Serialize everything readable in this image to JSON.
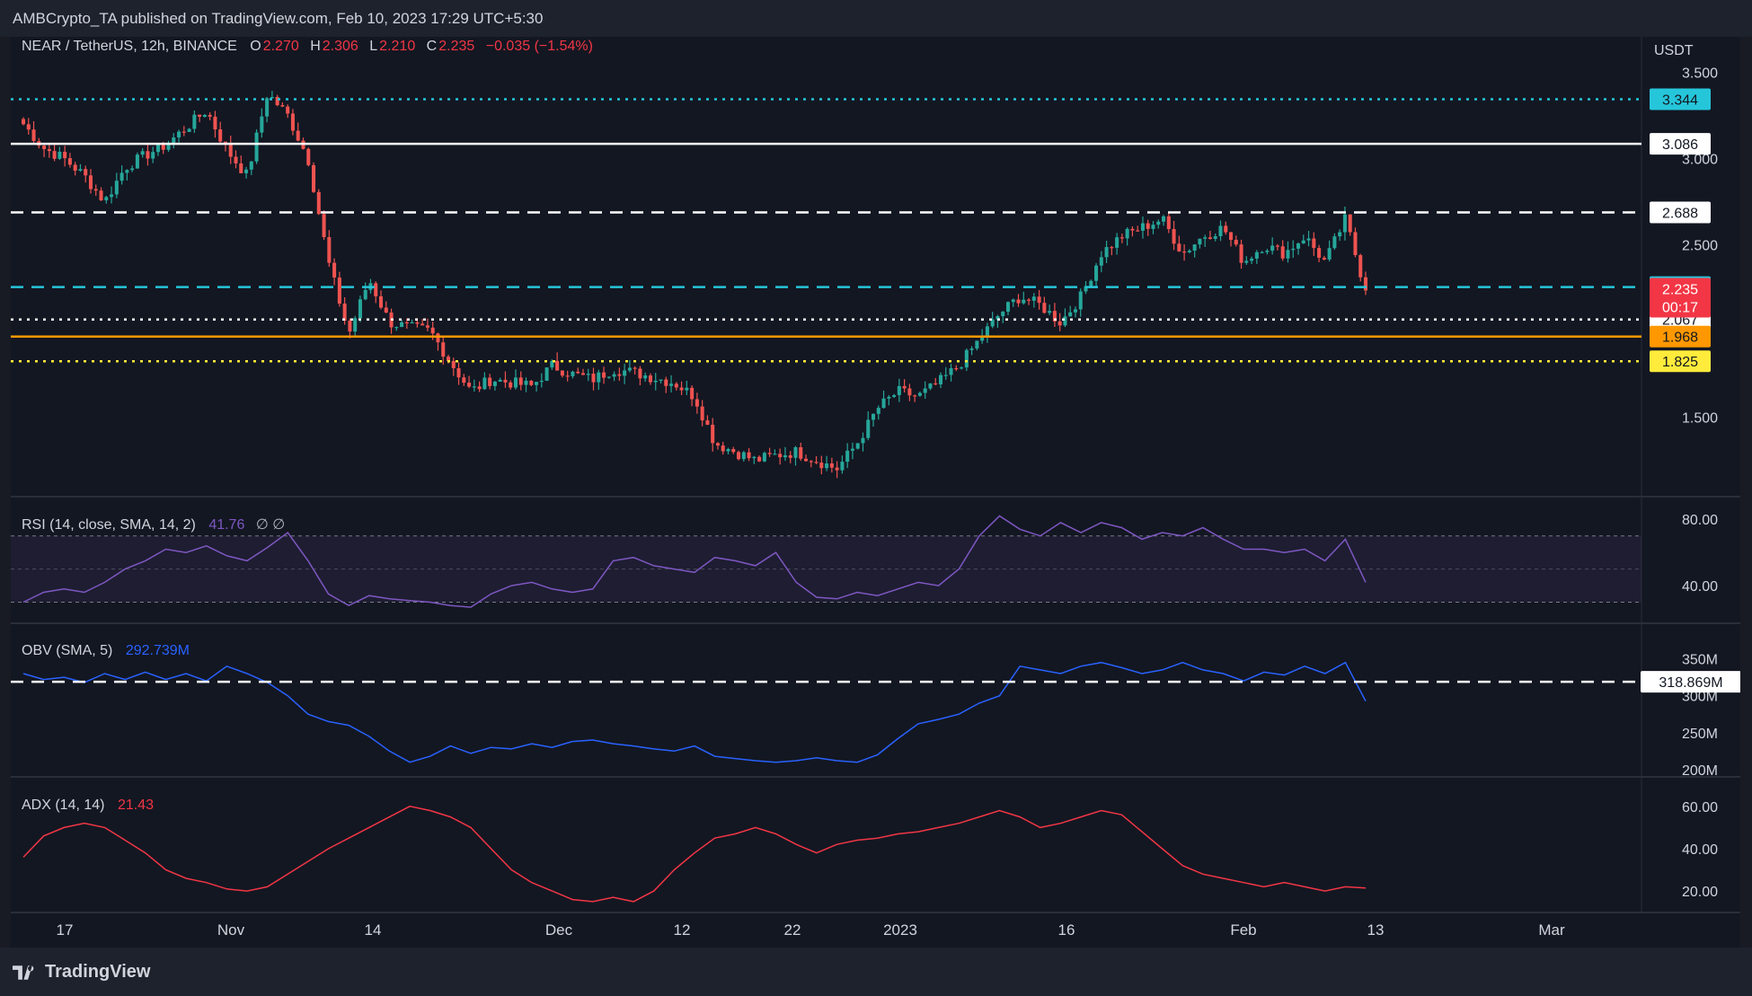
{
  "publisher_line": "AMBCrypto_TA published on TradingView.com, Feb 10, 2023 17:29 UTC+5:30",
  "brand": "TradingView",
  "main_legend": {
    "symbol": "NEAR / TetherUS, 12h, BINANCE",
    "o_label": "O",
    "o": "2.270",
    "h_label": "H",
    "h": "2.306",
    "l_label": "L",
    "l": "2.210",
    "c_label": "C",
    "c": "2.235",
    "change": "−0.035 (−1.54%)"
  },
  "currency": "USDT",
  "colors": {
    "up": "#26a69a",
    "down": "#ef5350",
    "bg": "#131722",
    "rsi": "#7e57c2",
    "obv": "#2962ff",
    "adx": "#f23645"
  },
  "chart_data": [
    {
      "type": "candlestick",
      "title": "NEAR / TetherUS, 12h, BINANCE",
      "ylabel": "USDT",
      "yticks": [
        "3.500",
        "3.000",
        "2.500",
        "1.500"
      ],
      "y_range": [
        1.05,
        3.55
      ],
      "x_tick_labels": [
        "17",
        "Nov",
        "14",
        "Dec",
        "12",
        "22",
        "2023",
        "16",
        "Feb",
        "13",
        "Mar"
      ],
      "close_path": [
        3.2,
        3.06,
        3.0,
        2.9,
        2.75,
        2.95,
        3.02,
        3.08,
        3.18,
        3.28,
        3.05,
        2.9,
        3.38,
        3.25,
        3.0,
        2.4,
        1.98,
        2.3,
        2.05,
        2.02,
        2.0,
        1.82,
        1.65,
        1.72,
        1.7,
        1.68,
        1.8,
        1.75,
        1.72,
        1.78,
        1.76,
        1.73,
        1.7,
        1.62,
        1.35,
        1.3,
        1.25,
        1.28,
        1.3,
        1.25,
        1.2,
        1.35,
        1.55,
        1.65,
        1.62,
        1.7,
        1.8,
        1.95,
        2.1,
        2.2,
        2.15,
        2.05,
        2.2,
        2.45,
        2.55,
        2.6,
        2.65,
        2.45,
        2.55,
        2.6,
        2.4,
        2.5,
        2.45,
        2.55,
        2.4,
        2.65,
        2.235
      ],
      "horizontal_levels": [
        {
          "value": 3.344,
          "label": "3.344",
          "color": "#26c6da",
          "style": "dotted"
        },
        {
          "value": 3.086,
          "label": "3.086",
          "color": "#ffffff",
          "style": "solid"
        },
        {
          "value": 2.688,
          "label": "2.688",
          "color": "#ffffff",
          "style": "dashed"
        },
        {
          "value": 2.255,
          "label": "2.255",
          "color": "#26c6da",
          "style": "dashed"
        },
        {
          "value": 2.067,
          "label": "2.067",
          "color": "#ffffff",
          "style": "dotted"
        },
        {
          "value": 1.968,
          "label": "1.968",
          "color": "#ff9800",
          "style": "solid"
        },
        {
          "value": 1.825,
          "label": "1.825",
          "color": "#ffeb3b",
          "style": "dotted"
        }
      ],
      "last_price": {
        "value": 2.235,
        "label": "2.235",
        "countdown": "00:17",
        "color": "#f23645"
      }
    },
    {
      "type": "line",
      "title": "RSI (14, close, SMA, 14, 2)",
      "value": "41.76",
      "extra": "∅ ∅",
      "yticks": [
        "80.00",
        "40.00"
      ],
      "y_range": [
        20,
        85
      ],
      "band": [
        30,
        70
      ],
      "values": [
        30,
        36,
        38,
        36,
        42,
        50,
        55,
        62,
        60,
        64,
        58,
        55,
        63,
        72,
        55,
        35,
        28,
        34,
        32,
        31,
        30,
        28,
        27,
        35,
        40,
        42,
        38,
        36,
        38,
        55,
        57,
        52,
        50,
        48,
        57,
        55,
        52,
        60,
        42,
        33,
        32,
        36,
        34,
        38,
        42,
        40,
        50,
        70,
        82,
        74,
        70,
        78,
        72,
        78,
        75,
        68,
        72,
        70,
        75,
        68,
        62,
        62,
        60,
        62,
        55,
        68,
        42
      ]
    },
    {
      "type": "line",
      "title": "OBV (SMA, 5)",
      "value": "292.739M",
      "yticks": [
        "350M",
        "300M",
        "250M",
        "200M"
      ],
      "y_range": [
        195,
        375
      ],
      "level": {
        "value": 318.869,
        "label": "318.869M",
        "style": "dashed"
      },
      "values": [
        330,
        322,
        325,
        318,
        330,
        322,
        332,
        322,
        330,
        320,
        340,
        330,
        318,
        300,
        275,
        265,
        260,
        245,
        225,
        210,
        218,
        232,
        222,
        230,
        228,
        235,
        230,
        238,
        240,
        235,
        232,
        228,
        225,
        232,
        218,
        215,
        212,
        210,
        212,
        216,
        212,
        210,
        220,
        242,
        262,
        268,
        275,
        290,
        300,
        340,
        335,
        330,
        340,
        345,
        338,
        330,
        335,
        345,
        335,
        330,
        320,
        332,
        328,
        340,
        330,
        345,
        292.739
      ]
    },
    {
      "type": "line",
      "title": "ADX (14, 14)",
      "value": "21.43",
      "yticks": [
        "60.00",
        "40.00",
        "20.00"
      ],
      "y_range": [
        12,
        65
      ],
      "values": [
        36,
        46,
        50,
        52,
        50,
        44,
        38,
        30,
        26,
        24,
        21,
        20,
        22,
        28,
        34,
        40,
        45,
        50,
        55,
        60,
        58,
        55,
        50,
        40,
        30,
        24,
        20,
        16,
        15,
        17,
        15,
        20,
        30,
        38,
        45,
        47,
        50,
        47,
        42,
        38,
        42,
        44,
        45,
        47,
        48,
        50,
        52,
        55,
        58,
        55,
        50,
        52,
        55,
        58,
        56,
        48,
        40,
        32,
        28,
        26,
        24,
        22,
        24,
        22,
        20,
        22,
        21.43
      ]
    }
  ]
}
